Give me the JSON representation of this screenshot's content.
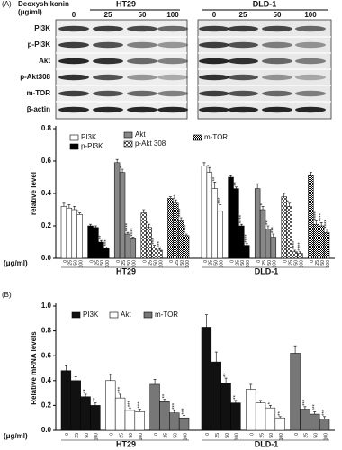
{
  "blot": {
    "panel": "(A)",
    "treatment": "Deoxyshikonin",
    "unit": "(μg/ml)",
    "cell_lines": [
      "HT29",
      "DLD-1"
    ],
    "doses": [
      "0",
      "25",
      "50",
      "100"
    ],
    "rows": [
      "PI3K",
      "p-PI3K",
      "Akt",
      "p-Akt308",
      "m-TOR",
      "β-actin"
    ]
  },
  "chart_data": [
    {
      "type": "bar",
      "ylabel": "relative level",
      "unit_label": "(μg/ml)",
      "doses": [
        "0",
        "25",
        "50",
        "100"
      ],
      "ylim": [
        0,
        0.8
      ],
      "yticks": [
        {
          "value": 0,
          "label": "0.0"
        },
        {
          "value": 0.2,
          "label": "0.2"
        },
        {
          "value": 0.4,
          "label": "0.4"
        },
        {
          "value": 0.6,
          "label": "0.6"
        },
        {
          "value": 0.8,
          "label": "0.8"
        }
      ],
      "series": [
        {
          "name": "PI3K",
          "color": "#ffffff"
        },
        {
          "name": "p-PI3K",
          "color": "#000000"
        },
        {
          "name": "Akt",
          "color": "#888888"
        },
        {
          "name": "p-Akt 308",
          "color": "checker"
        },
        {
          "name": "m-TOR",
          "color": "dense-checker"
        }
      ],
      "groups": [
        {
          "name": "HT29",
          "values": [
            [
              0.32,
              0.31,
              0.3,
              0.27
            ],
            [
              0.2,
              0.19,
              0.1,
              0.06
            ],
            [
              0.59,
              0.53,
              0.15,
              0.12
            ],
            [
              0.28,
              0.19,
              0.07,
              0.05
            ],
            [
              0.37,
              0.34,
              0.23,
              0.14
            ]
          ],
          "errors": [
            [
              0.02,
              0.02,
              0.02,
              0.01
            ],
            [
              0.01,
              0.01,
              0.01,
              0.01
            ],
            [
              0.02,
              0.02,
              0.01,
              0.01
            ],
            [
              0.02,
              0.02,
              0.01,
              0.01
            ],
            [
              0.01,
              0.02,
              0.02,
              0.01
            ]
          ],
          "stars": [
            [
              null,
              null,
              null,
              "*"
            ],
            [
              null,
              null,
              "**",
              "***"
            ],
            [
              null,
              "*",
              "****",
              "****"
            ],
            [
              null,
              "*",
              "***",
              "***"
            ],
            [
              null,
              "**",
              "****",
              "****"
            ]
          ]
        },
        {
          "name": "DLD-1",
          "values": [
            [
              0.57,
              0.53,
              0.43,
              0.29
            ],
            [
              0.5,
              0.43,
              0.2,
              0.08
            ],
            [
              0.43,
              0.3,
              0.18,
              0.13
            ],
            [
              0.38,
              0.32,
              0.04,
              0.03
            ],
            [
              0.51,
              0.21,
              0.2,
              0.16
            ]
          ],
          "errors": [
            [
              0.02,
              0.03,
              0.04,
              0.04
            ],
            [
              0.01,
              0.01,
              0.01,
              0.01
            ],
            [
              0.03,
              0.02,
              0.02,
              0.02
            ],
            [
              0.02,
              0.02,
              0.01,
              0.01
            ],
            [
              0.02,
              0.02,
              0.02,
              0.02
            ]
          ],
          "stars": [
            [
              null,
              "*",
              "**",
              "***"
            ],
            [
              null,
              "**",
              "****",
              "****"
            ],
            [
              null,
              "*",
              "**",
              "***"
            ],
            [
              null,
              "*",
              "****",
              "****"
            ],
            [
              null,
              "****",
              "****",
              "****"
            ]
          ]
        }
      ]
    },
    {
      "type": "bar",
      "panel": "(B)",
      "ylabel": "Relative mRNA levels",
      "unit_label": "(μg/ml)",
      "doses": [
        "0",
        "25",
        "50",
        "100"
      ],
      "ylim": [
        0,
        1
      ],
      "yticks": [
        {
          "value": 0,
          "label": "0.0"
        },
        {
          "value": 0.2,
          "label": "0.2"
        },
        {
          "value": 0.4,
          "label": "0.4"
        },
        {
          "value": 0.6,
          "label": "0.6"
        },
        {
          "value": 0.8,
          "label": "0.8"
        },
        {
          "value": 1,
          "label": "1.0"
        }
      ],
      "series": [
        {
          "name": "PI3K",
          "color": "#111111"
        },
        {
          "name": "Akt",
          "color": "#ffffff"
        },
        {
          "name": "m-TOR",
          "color": "#777777"
        }
      ],
      "groups": [
        {
          "name": "HT29",
          "values": [
            [
              0.48,
              0.4,
              0.27,
              0.2
            ],
            [
              0.4,
              0.26,
              0.16,
              0.15
            ],
            [
              0.37,
              0.23,
              0.14,
              0.1
            ]
          ],
          "errors": [
            [
              0.04,
              0.03,
              0.02,
              0.02
            ],
            [
              0.05,
              0.03,
              0.02,
              0.02
            ],
            [
              0.04,
              0.02,
              0.02,
              0.02
            ]
          ],
          "stars": [
            [
              null,
              null,
              "**",
              "**"
            ],
            [
              null,
              "***",
              "***",
              "***"
            ],
            [
              null,
              "**",
              "***",
              "***"
            ]
          ]
        },
        {
          "name": "DLD-1",
          "values": [
            [
              0.83,
              0.55,
              0.38,
              0.22
            ],
            [
              0.33,
              0.22,
              0.18,
              0.1
            ],
            [
              0.62,
              0.17,
              0.13,
              0.09
            ]
          ],
          "errors": [
            [
              0.1,
              0.08,
              0.04,
              0.02
            ],
            [
              0.04,
              0.02,
              0.02,
              0.01
            ],
            [
              0.06,
              0.02,
              0.02,
              0.02
            ]
          ],
          "stars": [
            [
              null,
              null,
              "**",
              "**"
            ],
            [
              null,
              null,
              "*",
              "**"
            ],
            [
              null,
              "***",
              "***",
              "***"
            ]
          ]
        }
      ]
    }
  ]
}
